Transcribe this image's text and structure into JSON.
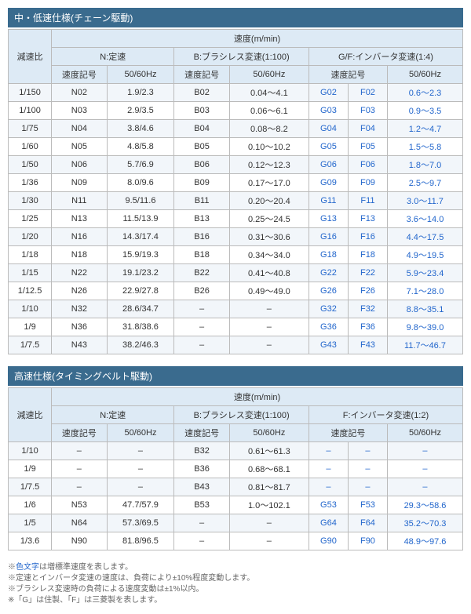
{
  "table1": {
    "title": "中・低速仕様(チェーン駆動)",
    "header_main": "速度(m/min)",
    "header_ratio": "減速比",
    "groups": [
      "N:定速",
      "B:ブラシレス変速(1:100)",
      "G/F:インバータ変速(1:4)"
    ],
    "subheaders": [
      "速度記号",
      "50/60Hz",
      "速度記号",
      "50/60Hz",
      "速度記号",
      "50/60Hz"
    ],
    "rows": [
      [
        "1/150",
        "N02",
        "1.9/2.3",
        "B02",
        "0.04～4.1",
        "G02",
        "F02",
        "0.6～2.3"
      ],
      [
        "1/100",
        "N03",
        "2.9/3.5",
        "B03",
        "0.06～6.1",
        "G03",
        "F03",
        "0.9～3.5"
      ],
      [
        "1/75",
        "N04",
        "3.8/4.6",
        "B04",
        "0.08～8.2",
        "G04",
        "F04",
        "1.2～4.7"
      ],
      [
        "1/60",
        "N05",
        "4.8/5.8",
        "B05",
        "0.10～10.2",
        "G05",
        "F05",
        "1.5～5.8"
      ],
      [
        "1/50",
        "N06",
        "5.7/6.9",
        "B06",
        "0.12～12.3",
        "G06",
        "F06",
        "1.8～7.0"
      ],
      [
        "1/36",
        "N09",
        "8.0/9.6",
        "B09",
        "0.17～17.0",
        "G09",
        "F09",
        "2.5～9.7"
      ],
      [
        "1/30",
        "N11",
        "9.5/11.6",
        "B11",
        "0.20～20.4",
        "G11",
        "F11",
        "3.0～11.7"
      ],
      [
        "1/25",
        "N13",
        "11.5/13.9",
        "B13",
        "0.25～24.5",
        "G13",
        "F13",
        "3.6～14.0"
      ],
      [
        "1/20",
        "N16",
        "14.3/17.4",
        "B16",
        "0.31～30.6",
        "G16",
        "F16",
        "4.4～17.5"
      ],
      [
        "1/18",
        "N18",
        "15.9/19.3",
        "B18",
        "0.34～34.0",
        "G18",
        "F18",
        "4.9～19.5"
      ],
      [
        "1/15",
        "N22",
        "19.1/23.2",
        "B22",
        "0.41～40.8",
        "G22",
        "F22",
        "5.9～23.4"
      ],
      [
        "1/12.5",
        "N26",
        "22.9/27.8",
        "B26",
        "0.49～49.0",
        "G26",
        "F26",
        "7.1～28.0"
      ],
      [
        "1/10",
        "N32",
        "28.6/34.7",
        "–",
        "–",
        "G32",
        "F32",
        "8.8～35.1"
      ],
      [
        "1/9",
        "N36",
        "31.8/38.6",
        "–",
        "–",
        "G36",
        "F36",
        "9.8～39.0"
      ],
      [
        "1/7.5",
        "N43",
        "38.2/46.3",
        "–",
        "–",
        "G43",
        "F43",
        "11.7～46.7"
      ]
    ]
  },
  "table2": {
    "title": "高速仕様(タイミングベルト駆動)",
    "header_main": "速度(m/min)",
    "header_ratio": "減速比",
    "groups": [
      "N:定速",
      "B:ブラシレス変速(1:100)",
      "F:インバータ変速(1:2)"
    ],
    "subheaders": [
      "速度記号",
      "50/60Hz",
      "速度記号",
      "50/60Hz",
      "速度記号",
      "50/60Hz"
    ],
    "rows": [
      [
        "1/10",
        "–",
        "–",
        "B32",
        "0.61～61.3",
        "–",
        "–",
        "–"
      ],
      [
        "1/9",
        "–",
        "–",
        "B36",
        "0.68～68.1",
        "–",
        "–",
        "–"
      ],
      [
        "1/7.5",
        "–",
        "–",
        "B43",
        "0.81～81.7",
        "–",
        "–",
        "–"
      ],
      [
        "1/6",
        "N53",
        "47.7/57.9",
        "B53",
        "1.0～102.1",
        "G53",
        "F53",
        "29.3～58.6"
      ],
      [
        "1/5",
        "N64",
        "57.3/69.5",
        "–",
        "–",
        "G64",
        "F64",
        "35.2～70.3"
      ],
      [
        "1/3.6",
        "N90",
        "81.8/96.5",
        "–",
        "–",
        "G90",
        "F90",
        "48.9～97.6"
      ]
    ]
  },
  "notes": [
    "※<span class='blue'>色文字</span>は増標準速度を表します。",
    "※定速とインバータ変速の速度は、負荷により±10%程度変動します。",
    "※ブラシレス変速時の負荷による速度変動は±1%以内。",
    "※「G」は住製、「F」は三菱製を表します。"
  ]
}
